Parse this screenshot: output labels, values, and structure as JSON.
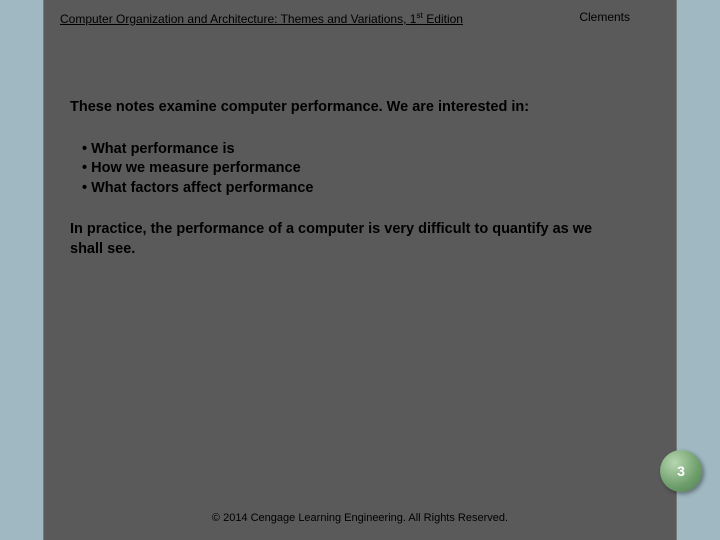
{
  "header": {
    "title_before_ordinal": "Computer Organization and Architecture: Themes and Variations, 1",
    "ordinal_sup": "st",
    "title_after_ordinal": " Edition",
    "author": "Clements"
  },
  "content": {
    "intro": "These notes  examine computer performance. We are interested in:",
    "bullets": [
      "What  performance is",
      "How we measure performance",
      "What factors affect performance"
    ],
    "closing": "In practice, the performance of a computer is very difficult to quantify as we shall see."
  },
  "page_number": "3",
  "footer": "© 2014 Cengage Learning Engineering. All Rights Reserved.",
  "colors": {
    "background": "#5a5a5a",
    "border_band": "#9fb8c2",
    "badge_gradient_light": "#b7d6b1",
    "badge_gradient_mid": "#6d9e6a",
    "badge_gradient_dark": "#4f7d4f",
    "text": "#000000"
  }
}
